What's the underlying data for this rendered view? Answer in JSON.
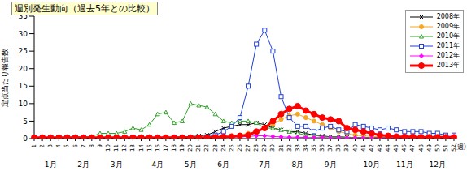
{
  "chart_data": {
    "type": "line",
    "title": "週別発生動向（過去5年との比較）",
    "y_label": "定点当たり報告数",
    "x_label": "(週)",
    "month_labels": [
      "1月",
      "2月",
      "3月",
      "4月",
      "5月",
      "6月",
      "7月",
      "8月",
      "9月",
      "10月",
      "11月",
      "12月"
    ],
    "categories": [
      "1",
      "2",
      "3",
      "4",
      "5",
      "6",
      "7",
      "8",
      "9",
      "10",
      "11",
      "12",
      "13",
      "14",
      "15",
      "16",
      "17",
      "18",
      "19",
      "20",
      "21",
      "22",
      "23",
      "24",
      "25",
      "26",
      "27",
      "28",
      "29",
      "30",
      "31",
      "32",
      "33",
      "34",
      "35",
      "36",
      "37",
      "38",
      "39",
      "40",
      "41",
      "42",
      "43",
      "44",
      "45",
      "46",
      "47",
      "48",
      "49",
      "50",
      "51",
      "52"
    ],
    "ylim": [
      0,
      35
    ],
    "yticks": [
      0,
      5,
      10,
      15,
      20,
      25,
      30,
      35
    ],
    "grid": false,
    "legend": "upper right",
    "series": [
      {
        "name": "2008年",
        "color": "#000000",
        "marker": "x",
        "line_style": "solid",
        "values": [
          0.2,
          0.2,
          0.2,
          0.2,
          0.2,
          0.2,
          0.2,
          0.3,
          0.3,
          0.3,
          0.3,
          0.3,
          0.3,
          0.3,
          0.3,
          0.4,
          0.4,
          0.4,
          0.5,
          0.5,
          0.8,
          1,
          2,
          3,
          3.5,
          4,
          4,
          4.5,
          4,
          3,
          2.5,
          2,
          2,
          1.5,
          1,
          0.8,
          0.5,
          0.5,
          0.4,
          0.3,
          0.3,
          0.3,
          0.3,
          0.3,
          0.2,
          0.2,
          0.2,
          0.2,
          0.2,
          0.2,
          0.2,
          0.2
        ]
      },
      {
        "name": "2009年",
        "color": "#f5a623",
        "marker": "circle",
        "line_style": "solid",
        "values": [
          0.2,
          0.2,
          0.2,
          0.2,
          0.2,
          0.2,
          0.2,
          0.2,
          0.2,
          0.2,
          0.2,
          0.2,
          0.2,
          0.2,
          0.2,
          0.2,
          0.2,
          0.2,
          0.2,
          0.2,
          0.3,
          0.3,
          0.4,
          0.5,
          0.7,
          1,
          1.5,
          2,
          3,
          4,
          5.5,
          6.5,
          7,
          6,
          5,
          4,
          3,
          2,
          1.5,
          1,
          0.8,
          0.6,
          0.5,
          0.5,
          0.4,
          0.4,
          0.3,
          0.3,
          0.3,
          0.3,
          0.3,
          0.3
        ]
      },
      {
        "name": "2010年",
        "color": "#33a02c",
        "marker": "triangle-open",
        "line_style": "solid",
        "values": [
          0.3,
          0.3,
          0.4,
          0.4,
          0.4,
          0.5,
          0.5,
          0.6,
          1.5,
          1.5,
          1.5,
          2,
          3,
          2.5,
          4,
          7,
          7.5,
          4.5,
          5,
          10,
          9.5,
          9,
          7,
          5,
          4.5,
          5,
          5,
          4.5,
          3,
          3,
          2.5,
          2,
          1.5,
          1,
          1,
          0.5,
          0.5,
          0.4,
          0.4,
          0.3,
          0.3,
          0.3,
          0.3,
          0.3,
          0.3,
          0.3,
          0.3,
          0.3,
          0.3,
          0.3,
          0.3,
          0.3
        ]
      },
      {
        "name": "2011年",
        "color": "#1f3fd6",
        "marker": "square-open",
        "line_style": "solid",
        "values": [
          0.3,
          0.3,
          0.3,
          0.3,
          0.3,
          0.3,
          0.3,
          0.3,
          0.3,
          0.3,
          0.3,
          0.3,
          0.3,
          0.3,
          0.3,
          0.3,
          0.3,
          0.3,
          0.3,
          0.3,
          0.3,
          0.5,
          1,
          2,
          3.5,
          6,
          15,
          27,
          31,
          25,
          12,
          6,
          3.5,
          3.5,
          2,
          3,
          3.5,
          2.5,
          2,
          4,
          3.5,
          3,
          2.5,
          3,
          2.5,
          2,
          2,
          2,
          1.5,
          1.5,
          1,
          1
        ]
      },
      {
        "name": "2012年",
        "color": "#ff00ff",
        "marker": "diamond",
        "line_style": "solid",
        "values": [
          0.2,
          0.2,
          0.2,
          0.2,
          0.2,
          0.2,
          0.2,
          0.2,
          0.2,
          0.2,
          0.2,
          0.2,
          0.2,
          0.2,
          0.2,
          0.2,
          0.2,
          0.2,
          0.2,
          0.2,
          0.2,
          0.2,
          0.3,
          0.3,
          0.4,
          0.5,
          0.6,
          0.8,
          0.8,
          0.6,
          0.5,
          0.4,
          0.4,
          0.3,
          0.3,
          0.3,
          0.2,
          0.2,
          0.2,
          0.2,
          0.2,
          0.2,
          0.2,
          0.2,
          0.2,
          0.2,
          0.2,
          0.2,
          0.2,
          0.2,
          0.2,
          0.2
        ]
      },
      {
        "name": "2013年",
        "color": "#ff0000",
        "marker": "circle",
        "line_style": "thick",
        "values": [
          0.3,
          0.3,
          0.3,
          0.3,
          0.3,
          0.3,
          0.3,
          0.3,
          0.3,
          0.3,
          0.3,
          0.3,
          0.3,
          0.3,
          0.3,
          0.3,
          0.3,
          0.3,
          0.3,
          0.3,
          0.3,
          0.3,
          0.4,
          0.5,
          0.6,
          0.8,
          1,
          2,
          3,
          5,
          7,
          8.5,
          9.3,
          8,
          7,
          6,
          5.5,
          5,
          3,
          2.5,
          2,
          1.5,
          1,
          0.8,
          0.6,
          0.5,
          0.5,
          0.4,
          0.4,
          0.4,
          0.4,
          0.4
        ]
      }
    ]
  }
}
